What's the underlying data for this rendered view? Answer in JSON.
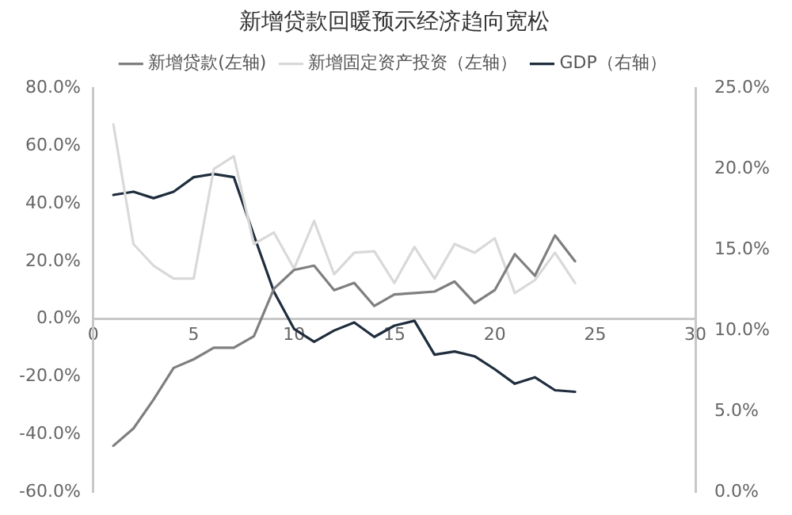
{
  "chart_data": {
    "type": "line",
    "title": "新增贷款回暖预示经济趋向宽松",
    "x": [
      1,
      2,
      3,
      4,
      5,
      6,
      7,
      8,
      9,
      10,
      11,
      12,
      13,
      14,
      15,
      16,
      17,
      18,
      19,
      20,
      21,
      22,
      23,
      24
    ],
    "series": [
      {
        "name": "新增贷款(左轴)",
        "color": "#7f7f7f",
        "values": [
          -44,
          -38,
          -28,
          -17,
          -14,
          -10,
          -10,
          -6,
          10.5,
          17,
          18.5,
          10,
          12.5,
          4.5,
          8.5,
          9,
          9.5,
          13,
          5.5,
          10,
          22.5,
          15,
          29,
          20
        ]
      },
      {
        "name": "新增固定资产投资（左轴）",
        "color": "#d9d9d9",
        "values": [
          67.5,
          26,
          18.5,
          14,
          14,
          52,
          56.5,
          26,
          30,
          17.5,
          34,
          15.5,
          23,
          23.5,
          12.5,
          25,
          14,
          26,
          23,
          28,
          9,
          13.5,
          23,
          12.5
        ]
      },
      {
        "name": "GDP（右轴）",
        "color": "#1f2d3d",
        "axis": "y2",
        "values": [
          18.4,
          18.6,
          18.2,
          18.6,
          19.5,
          19.7,
          19.5,
          15.9,
          12.4,
          10.1,
          9.3,
          10.0,
          10.5,
          9.6,
          10.3,
          10.6,
          8.5,
          8.7,
          8.4,
          7.6,
          6.7,
          7.1,
          6.3,
          6.2
        ]
      }
    ],
    "xlim": [
      0,
      30
    ],
    "xticks": [
      0,
      5,
      10,
      15,
      20,
      25,
      30
    ],
    "ylim": [
      -60,
      80
    ],
    "yticks": [
      {
        "value": -60,
        "label": "-60.0%"
      },
      {
        "value": -40,
        "label": "-40.0%"
      },
      {
        "value": -20,
        "label": "-20.0%"
      },
      {
        "value": 0,
        "label": "0.0%"
      },
      {
        "value": 20,
        "label": "20.0%"
      },
      {
        "value": 40,
        "label": "40.0%"
      },
      {
        "value": 60,
        "label": "60.0%"
      },
      {
        "value": 80,
        "label": "80.0%"
      }
    ],
    "y2lim": [
      0,
      25
    ],
    "y2ticks": [
      {
        "value": 0,
        "label": "0.0%"
      },
      {
        "value": 5,
        "label": "5.0%"
      },
      {
        "value": 10,
        "label": "10.0%"
      },
      {
        "value": 15,
        "label": "15.0%"
      },
      {
        "value": 20,
        "label": "20.0%"
      },
      {
        "value": 25,
        "label": "25.0%"
      }
    ],
    "grid": false,
    "legend": "top",
    "marker": "none",
    "line_style": "solid"
  }
}
